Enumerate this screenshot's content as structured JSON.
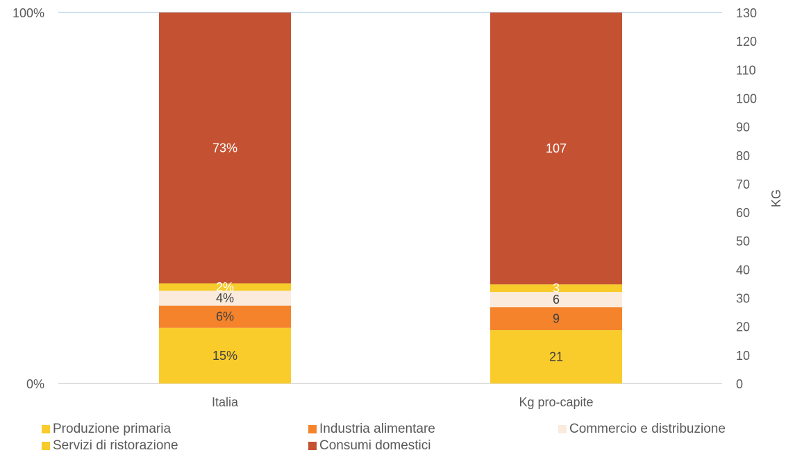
{
  "chart_data": {
    "type": "bar",
    "stacked": true,
    "categories": [
      "Italia",
      "Kg pro-capite"
    ],
    "series": [
      {
        "name": "Produzione primaria",
        "color": "#F9CC2B",
        "labels": [
          "15%",
          "21"
        ],
        "values": [
          15,
          21
        ]
      },
      {
        "name": "Industria alimentare",
        "color": "#F4832B",
        "labels": [
          "6%",
          "9"
        ],
        "values": [
          6,
          9
        ]
      },
      {
        "name": "Commercio e distribuzione",
        "color": "#FAEBDC",
        "labels": [
          "4%",
          "6"
        ],
        "values": [
          4,
          6
        ]
      },
      {
        "name": "Servizi di ristorazione",
        "color": "#F7CB2A",
        "labels": [
          "2%",
          "3"
        ],
        "values": [
          2,
          3
        ]
      },
      {
        "name": "Consumi domestici",
        "color": "#C45232",
        "labels": [
          "73%",
          "107"
        ],
        "values": [
          73,
          107
        ]
      }
    ],
    "left_axis": {
      "ticks": [
        "0%",
        "100%"
      ],
      "range": [
        0,
        100
      ]
    },
    "right_axis": {
      "label": "KG",
      "ticks": [
        "0",
        "10",
        "20",
        "30",
        "40",
        "50",
        "60",
        "70",
        "80",
        "90",
        "100",
        "110",
        "120",
        "130"
      ],
      "range": [
        0,
        130
      ]
    },
    "label_colors": {
      "dark": "#404040",
      "light": "#ffffff"
    },
    "legend_position": "bottom"
  }
}
